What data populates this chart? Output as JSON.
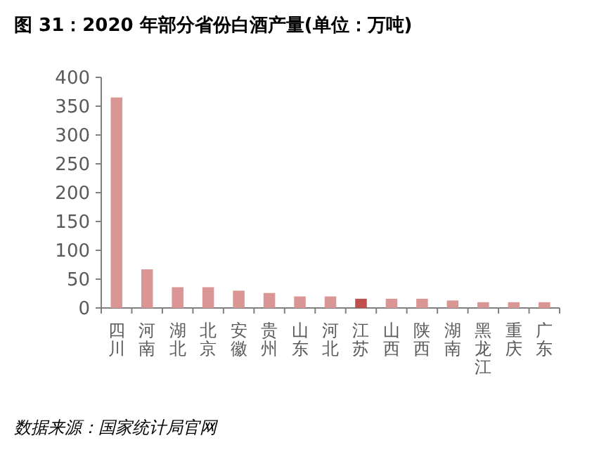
{
  "chart_data": {
    "type": "bar",
    "title": "图 31：2020 年部分省份白酒产量(单位：万吨)",
    "categories": [
      "四川",
      "河南",
      "湖北",
      "北京",
      "安徽",
      "贵州",
      "山东",
      "河北",
      "江苏",
      "山西",
      "陕西",
      "湖南",
      "黑龙江",
      "重庆",
      "广东"
    ],
    "values": [
      365,
      67,
      36,
      36,
      30,
      26,
      20,
      20,
      16,
      16,
      16,
      13,
      10,
      10,
      10
    ],
    "colors": [
      "#d99694",
      "#d99694",
      "#d99694",
      "#d99694",
      "#d99694",
      "#d99694",
      "#d99694",
      "#d99694",
      "#c0504d",
      "#d99694",
      "#d99694",
      "#d99694",
      "#d99694",
      "#d99694",
      "#d99694"
    ],
    "ylim": [
      0,
      400
    ],
    "yticks": [
      0,
      50,
      100,
      150,
      200,
      250,
      300,
      350,
      400
    ],
    "grid": false,
    "annotations": [
      "数据来源：国家统计局官网"
    ]
  }
}
